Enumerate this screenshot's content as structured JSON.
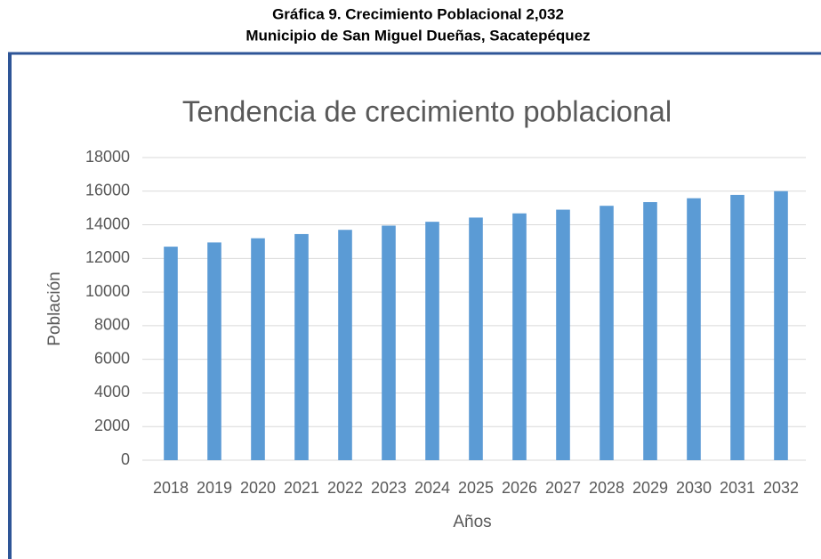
{
  "caption": {
    "line1": "Gráfica 9.  Crecimiento Poblacional 2,032",
    "line2": "Municipio de San Miguel Dueñas, Sacatepéquez"
  },
  "chart_data": {
    "type": "bar",
    "title": "Tendencia de crecimiento poblacional",
    "x_label": "Años",
    "y_label": "Población",
    "categories": [
      "2018",
      "2019",
      "2020",
      "2021",
      "2022",
      "2023",
      "2024",
      "2025",
      "2026",
      "2027",
      "2028",
      "2029",
      "2030",
      "2031",
      "2032"
    ],
    "values": [
      12700,
      12950,
      13200,
      13450,
      13700,
      13950,
      14180,
      14430,
      14680,
      14900,
      15130,
      15350,
      15580,
      15780,
      16000
    ],
    "color": "#5b9bd5",
    "ylim": [
      0,
      18000
    ],
    "yticks": [
      0,
      2000,
      4000,
      6000,
      8000,
      10000,
      12000,
      14000,
      16000,
      18000
    ],
    "grid": true
  }
}
